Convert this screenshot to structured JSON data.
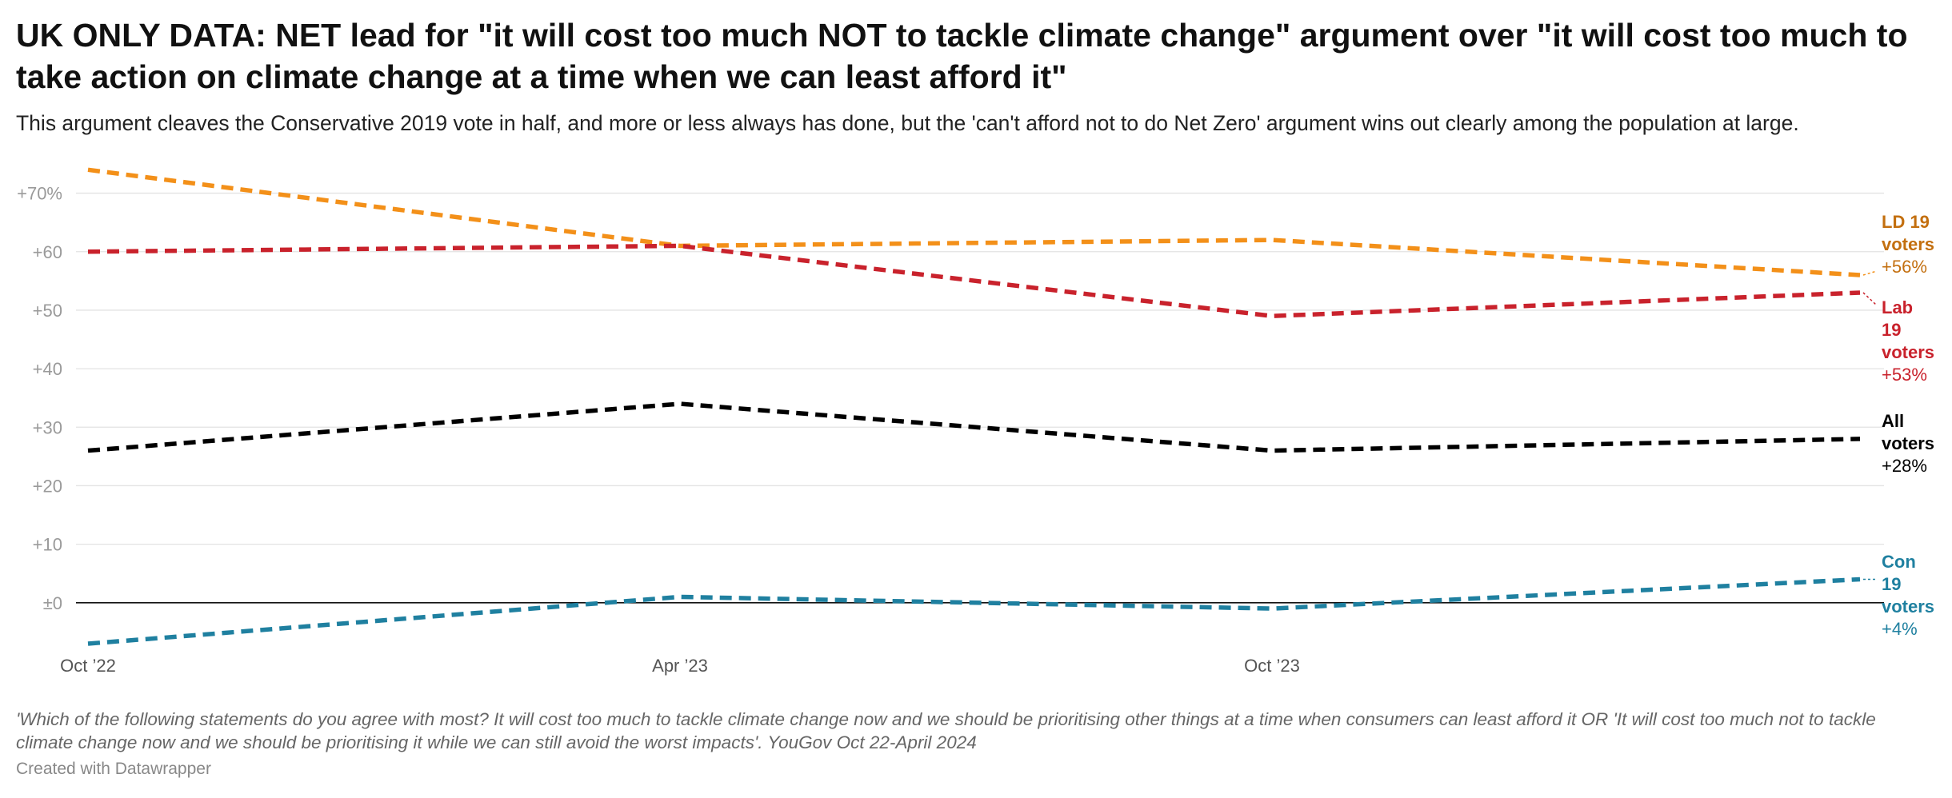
{
  "title": "UK ONLY DATA: NET lead for \"it will cost too much NOT to tackle climate change\" argument over \"it will cost too much to take action on climate change at a time when we can least afford it\"",
  "subtitle": "This argument cleaves the Conservative 2019 vote in half, and more or less always has done, but the 'can't afford not to do Net Zero' argument wins out clearly among the population at large.",
  "notes": "'Which of the following statements do you agree with most? It will cost too much to tackle climate change now and we should be prioritising other things at a time when consumers can least afford it OR 'It will cost too much not to tackle climate change now and we should be prioritising it while we can still avoid the worst impacts'. YouGov Oct 22-April 2024",
  "credit": "Created with Datawrapper",
  "chart_data": {
    "type": "line",
    "x": [
      "2022-10",
      "2023-04",
      "2023-10",
      "2024-04"
    ],
    "x_tick_labels": [
      {
        "x": "2022-10",
        "label": "Oct ’22"
      },
      {
        "x": "2023-04",
        "label": "Apr ’23"
      },
      {
        "x": "2023-10",
        "label": "Oct ’23"
      }
    ],
    "y_ticks": [
      {
        "value": 70,
        "label": "+70%"
      },
      {
        "value": 60,
        "label": "+60"
      },
      {
        "value": 50,
        "label": "+50"
      },
      {
        "value": 40,
        "label": "+40"
      },
      {
        "value": 30,
        "label": "+30"
      },
      {
        "value": 20,
        "label": "+20"
      },
      {
        "value": 10,
        "label": "+10"
      },
      {
        "value": 0,
        "label": "±0"
      }
    ],
    "ylim": [
      -7,
      75
    ],
    "grid": true,
    "line_style": "dashed",
    "series": [
      {
        "name_lines": [
          "LD 19",
          "voters"
        ],
        "end_label": "+56%",
        "color": "#f39019",
        "label_color": "#c36f0f",
        "values": [
          74,
          61,
          62,
          56
        ]
      },
      {
        "name_lines": [
          "Lab",
          "19",
          "voters"
        ],
        "end_label": "+53%",
        "color": "#c9222c",
        "label_color": "#c9222c",
        "values": [
          60,
          61,
          49,
          53
        ]
      },
      {
        "name_lines": [
          "All",
          "voters"
        ],
        "end_label": "+28%",
        "color": "#000000",
        "label_color": "#000000",
        "values": [
          26,
          34,
          26,
          28
        ]
      },
      {
        "name_lines": [
          "Con",
          "19",
          "voters"
        ],
        "end_label": "+4%",
        "color": "#1f80a0",
        "label_color": "#1f80a0",
        "values": [
          -7,
          1,
          -1,
          4
        ]
      }
    ]
  }
}
